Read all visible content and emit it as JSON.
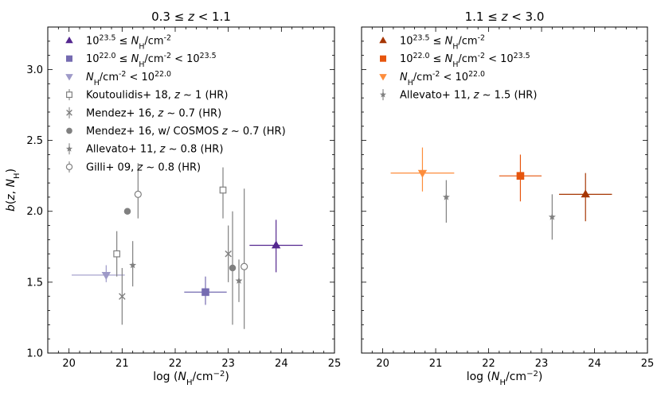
{
  "chart_data": [
    {
      "type": "scatter",
      "title": "0.3 ≤ z < 1.1",
      "title_parts": [
        "0.3 ≤ ",
        "z",
        " < 1.1"
      ],
      "xlabel": "log (N_H/cm^-2)",
      "ylabel": "b(z, N_H)",
      "xlim": [
        19.6,
        25.0
      ],
      "ylim": [
        1.0,
        3.3
      ],
      "xticks": [
        20,
        21,
        22,
        23,
        24,
        25
      ],
      "yticks": [
        1.0,
        1.5,
        2.0,
        2.5,
        3.0
      ],
      "legend_position": "top-left",
      "legend": [
        {
          "marker": "triangle-up",
          "color": "#54278f",
          "text": "10^{23.5} ≤ N_H/cm^{-2}"
        },
        {
          "marker": "square",
          "color": "#756bb1",
          "text": "10^{22.0} ≤ N_H/cm^{-2} < 10^{23.5}"
        },
        {
          "marker": "triangle-down",
          "color": "#9e9ac8",
          "text": "N_H/cm^{-2} < 10^{22.0}"
        },
        {
          "marker": "open-square",
          "color": "#808080",
          "text": "Koutoulidis+ 18, z ~ 1 (HR)"
        },
        {
          "marker": "x",
          "color": "#808080",
          "text": "Mendez+ 16, z ~ 0.7 (HR)"
        },
        {
          "marker": "circle",
          "color": "#808080",
          "text": "Mendez+ 16, w/ COSMOS z ~ 0.7 (HR)"
        },
        {
          "marker": "star",
          "color": "#808080",
          "text": "Allevato+ 11,  z ~ 0.8 (HR)"
        },
        {
          "marker": "open-circle",
          "color": "#808080",
          "text": "Gilli+ 09, z ~ 0.8 (HR)"
        }
      ],
      "series": [
        {
          "name": "N_H ≥ 10^23.5",
          "marker": "triangle-up",
          "color": "#54278f",
          "points": [
            {
              "x": 23.9,
              "y": 1.76,
              "xerr": [
                0.5,
                0.5
              ],
              "yerr": [
                0.19,
                0.18
              ]
            }
          ]
        },
        {
          "name": "10^22.0 ≤ N_H < 10^23.5",
          "marker": "square",
          "color": "#756bb1",
          "points": [
            {
              "x": 22.57,
              "y": 1.43,
              "xerr": [
                0.4,
                0.4
              ],
              "yerr": [
                0.09,
                0.11
              ]
            }
          ]
        },
        {
          "name": "N_H < 10^22.0",
          "marker": "triangle-down",
          "color": "#9e9ac8",
          "points": [
            {
              "x": 20.7,
              "y": 1.55,
              "xerr": [
                0.65,
                0.35
              ],
              "yerr": [
                0.05,
                0.07
              ]
            }
          ]
        },
        {
          "name": "Koutoulidis+ 18",
          "marker": "open-square",
          "color": "#808080",
          "points": [
            {
              "x": 20.9,
              "y": 1.7,
              "xerr": [
                0,
                0
              ],
              "yerr": [
                0.16,
                0.16
              ]
            },
            {
              "x": 22.9,
              "y": 2.15,
              "xerr": [
                0,
                0
              ],
              "yerr": [
                0.2,
                0.16
              ]
            }
          ]
        },
        {
          "name": "Mendez+ 16",
          "marker": "x",
          "color": "#808080",
          "points": [
            {
              "x": 21.0,
              "y": 1.4,
              "xerr": [
                0,
                0
              ],
              "yerr": [
                0.2,
                0.2
              ]
            },
            {
              "x": 23.0,
              "y": 1.7,
              "xerr": [
                0,
                0
              ],
              "yerr": [
                0.2,
                0.2
              ]
            }
          ]
        },
        {
          "name": "Mendez+ 16 w/ COSMOS",
          "marker": "circle",
          "color": "#808080",
          "points": [
            {
              "x": 21.1,
              "y": 2.0,
              "xerr": [
                0,
                0
              ],
              "yerr": [
                0,
                0
              ]
            },
            {
              "x": 23.08,
              "y": 1.6,
              "xerr": [
                0,
                0
              ],
              "yerr": [
                0.4,
                0.4
              ]
            }
          ]
        },
        {
          "name": "Allevato+ 11",
          "marker": "star",
          "color": "#808080",
          "points": [
            {
              "x": 21.2,
              "y": 1.62,
              "xerr": [
                0,
                0
              ],
              "yerr": [
                0.15,
                0.17
              ]
            },
            {
              "x": 23.2,
              "y": 1.51,
              "xerr": [
                0,
                0
              ],
              "yerr": [
                0.15,
                0.15
              ]
            }
          ]
        },
        {
          "name": "Gilli+ 09",
          "marker": "open-circle",
          "color": "#808080",
          "points": [
            {
              "x": 21.3,
              "y": 2.12,
              "xerr": [
                0,
                0
              ],
              "yerr": [
                0.17,
                0.22
              ]
            },
            {
              "x": 23.3,
              "y": 1.61,
              "xerr": [
                0,
                0
              ],
              "yerr": [
                0.44,
                0.55
              ]
            }
          ]
        }
      ]
    },
    {
      "type": "scatter",
      "title": "1.1 ≤ z < 3.0",
      "title_parts": [
        "1.1 ≤ ",
        "z",
        " < 3.0"
      ],
      "xlabel": "log (N_H/cm^-2)",
      "ylabel": "",
      "xlim": [
        19.6,
        25.0
      ],
      "ylim": [
        1.0,
        3.3
      ],
      "xticks": [
        20,
        21,
        22,
        23,
        24,
        25
      ],
      "yticks": [],
      "legend_position": "top-left",
      "legend": [
        {
          "marker": "triangle-up",
          "color": "#a63603",
          "text": "10^{23.5} ≤ N_H/cm^{-2}"
        },
        {
          "marker": "square",
          "color": "#e6550d",
          "text": "10^{22.0} ≤ N_H/cm^{-2} < 10^{23.5}"
        },
        {
          "marker": "triangle-down",
          "color": "#fd8d3c",
          "text": "N_H/cm^{-2} < 10^{22.0}"
        },
        {
          "marker": "star",
          "color": "#808080",
          "text": "Allevato+ 11,  z ~ 1.5 (HR)"
        }
      ],
      "series": [
        {
          "name": "N_H ≥ 10^23.5",
          "marker": "triangle-up",
          "color": "#a63603",
          "points": [
            {
              "x": 23.83,
              "y": 2.12,
              "xerr": [
                0.5,
                0.5
              ],
              "yerr": [
                0.19,
                0.15
              ]
            }
          ]
        },
        {
          "name": "10^22.0 ≤ N_H < 10^23.5",
          "marker": "square",
          "color": "#e6550d",
          "points": [
            {
              "x": 22.6,
              "y": 2.25,
              "xerr": [
                0.4,
                0.4
              ],
              "yerr": [
                0.18,
                0.15
              ]
            }
          ]
        },
        {
          "name": "N_H < 10^22.0",
          "marker": "triangle-down",
          "color": "#fd8d3c",
          "points": [
            {
              "x": 20.75,
              "y": 2.27,
              "xerr": [
                0.6,
                0.6
              ],
              "yerr": [
                0.13,
                0.18
              ]
            }
          ]
        },
        {
          "name": "Allevato+ 11",
          "marker": "star",
          "color": "#808080",
          "points": [
            {
              "x": 21.2,
              "y": 2.1,
              "xerr": [
                0,
                0
              ],
              "yerr": [
                0.18,
                0.12
              ]
            },
            {
              "x": 23.2,
              "y": 1.96,
              "xerr": [
                0,
                0
              ],
              "yerr": [
                0.16,
                0.16
              ]
            }
          ]
        }
      ]
    }
  ]
}
